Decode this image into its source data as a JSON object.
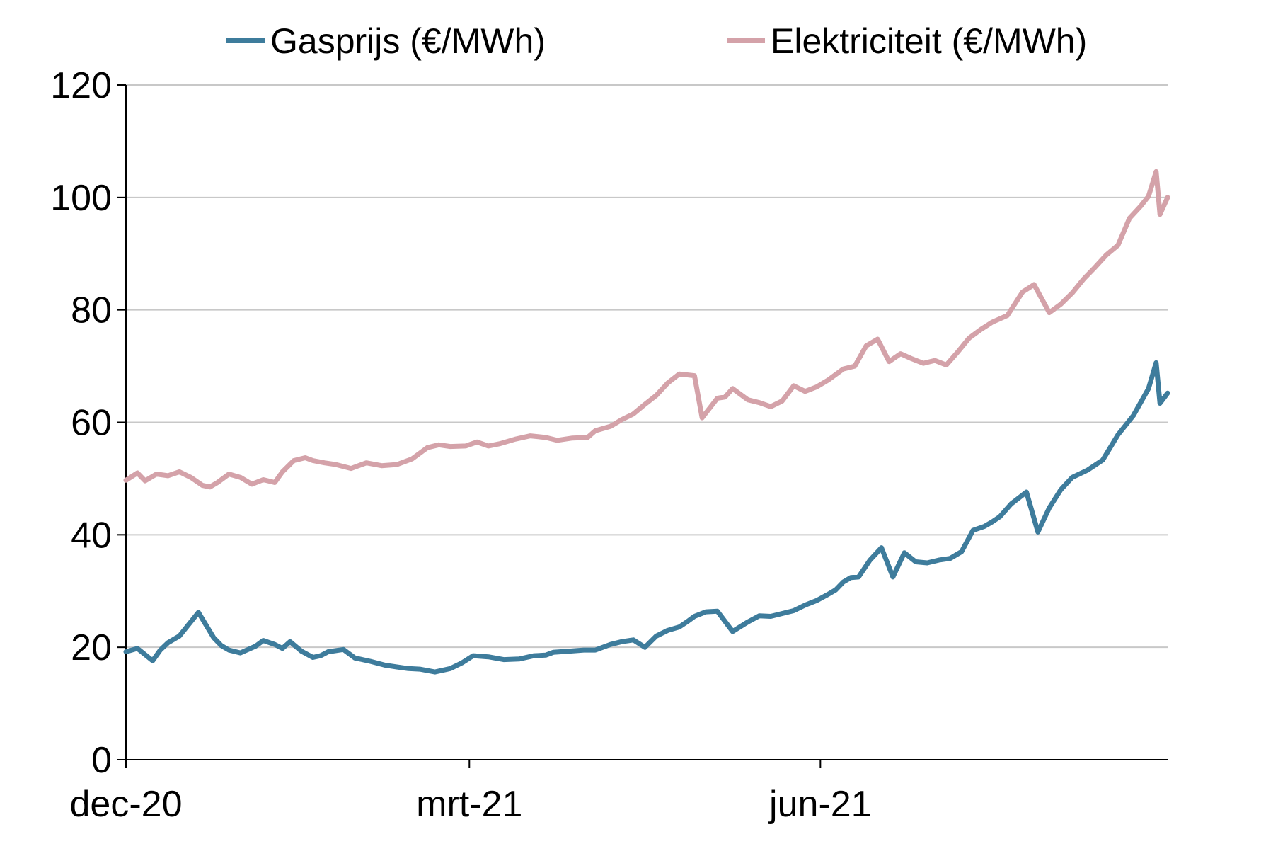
{
  "chart_data": {
    "type": "line",
    "title": "",
    "xlabel": "",
    "ylabel": "",
    "ylim": [
      0,
      120
    ],
    "y_ticks": [
      "0",
      "20",
      "40",
      "60",
      "80",
      "100",
      "120"
    ],
    "x_ticks": [
      "dec-20",
      "mrt-21",
      "jun-21"
    ],
    "x_tick_positions": [
      "2020-12-01",
      "2021-03-01",
      "2021-06-01"
    ],
    "xlim": [
      "2020-12-01",
      "2021-08-31"
    ],
    "grid": "horizontal",
    "legend_position": "top",
    "series": [
      {
        "name": "Gasprijs (€/MWh)",
        "color": "#3e7c9c",
        "x": [
          "2020-12-01",
          "2020-12-04",
          "2020-12-08",
          "2020-12-10",
          "2020-12-12",
          "2020-12-15",
          "2020-12-20",
          "2020-12-24",
          "2020-12-26",
          "2020-12-28",
          "2020-12-31",
          "2021-01-04",
          "2021-01-06",
          "2021-01-09",
          "2021-01-11",
          "2021-01-13",
          "2021-01-16",
          "2021-01-19",
          "2021-01-21",
          "2021-01-23",
          "2021-01-27",
          "2021-01-30",
          "2021-02-03",
          "2021-02-07",
          "2021-02-10",
          "2021-02-13",
          "2021-02-16",
          "2021-02-20",
          "2021-02-24",
          "2021-02-27",
          "2021-03-02",
          "2021-03-06",
          "2021-03-10",
          "2021-03-14",
          "2021-03-18",
          "2021-03-21",
          "2021-03-23",
          "2021-03-27",
          "2021-03-31",
          "2021-04-03",
          "2021-04-07",
          "2021-04-10",
          "2021-04-13",
          "2021-04-16",
          "2021-04-19",
          "2021-04-22",
          "2021-04-25",
          "2021-04-27",
          "2021-04-29",
          "2021-05-02",
          "2021-05-05",
          "2021-05-09",
          "2021-05-13",
          "2021-05-16",
          "2021-05-19",
          "2021-05-22",
          "2021-05-25",
          "2021-05-28",
          "2021-05-31",
          "2021-06-03",
          "2021-06-05",
          "2021-06-07",
          "2021-06-09",
          "2021-06-11",
          "2021-06-14",
          "2021-06-17",
          "2021-06-20",
          "2021-06-23",
          "2021-06-26",
          "2021-06-29",
          "2021-07-02",
          "2021-07-05",
          "2021-07-08",
          "2021-07-11",
          "2021-07-14",
          "2021-07-16",
          "2021-07-18",
          "2021-07-21",
          "2021-07-25",
          "2021-07-28",
          "2021-07-31",
          "2021-08-03",
          "2021-08-06",
          "2021-08-10",
          "2021-08-14",
          "2021-08-18",
          "2021-08-22",
          "2021-08-26",
          "2021-08-28",
          "2021-08-29",
          "2021-08-31"
        ],
        "values": [
          19.2,
          19.8,
          17.6,
          19.5,
          20.8,
          22.0,
          26.2,
          21.7,
          20.3,
          19.5,
          19.0,
          20.2,
          21.2,
          20.5,
          19.8,
          21.0,
          19.3,
          18.2,
          18.5,
          19.2,
          19.6,
          18.1,
          17.5,
          16.8,
          16.5,
          16.2,
          16.1,
          15.6,
          16.2,
          17.2,
          18.5,
          18.3,
          17.8,
          17.9,
          18.5,
          18.6,
          19.1,
          19.3,
          19.5,
          19.5,
          20.5,
          21.0,
          21.3,
          20.0,
          22.0,
          23.0,
          23.6,
          24.5,
          25.5,
          26.3,
          26.4,
          22.8,
          24.5,
          25.6,
          25.5,
          26.0,
          26.5,
          27.5,
          28.3,
          29.4,
          30.2,
          31.6,
          32.4,
          32.5,
          35.5,
          37.7,
          32.5,
          36.8,
          35.2,
          35.0,
          35.5,
          35.8,
          37.0,
          40.8,
          41.5,
          42.3,
          43.2,
          45.5,
          47.6,
          40.5,
          44.8,
          48.0,
          50.2,
          51.5,
          53.3,
          57.8,
          61.2,
          66.0,
          70.6,
          63.4,
          65.2
        ]
      },
      {
        "name": "Elektriciteit (€/MWh)",
        "color": "#d4a2a9",
        "x": [
          "2020-12-01",
          "2020-12-04",
          "2020-12-06",
          "2020-12-09",
          "2020-12-12",
          "2020-12-15",
          "2020-12-18",
          "2020-12-21",
          "2020-12-23",
          "2020-12-25",
          "2020-12-28",
          "2020-12-31",
          "2021-01-03",
          "2021-01-06",
          "2021-01-09",
          "2021-01-11",
          "2021-01-14",
          "2021-01-17",
          "2021-01-19",
          "2021-01-22",
          "2021-01-25",
          "2021-01-29",
          "2021-02-02",
          "2021-02-06",
          "2021-02-10",
          "2021-02-14",
          "2021-02-18",
          "2021-02-21",
          "2021-02-24",
          "2021-02-28",
          "2021-03-03",
          "2021-03-06",
          "2021-03-09",
          "2021-03-13",
          "2021-03-17",
          "2021-03-21",
          "2021-03-24",
          "2021-03-28",
          "2021-04-01",
          "2021-04-03",
          "2021-04-07",
          "2021-04-10",
          "2021-04-13",
          "2021-04-16",
          "2021-04-19",
          "2021-04-22",
          "2021-04-25",
          "2021-04-29",
          "2021-05-01",
          "2021-05-05",
          "2021-05-07",
          "2021-05-09",
          "2021-05-13",
          "2021-05-16",
          "2021-05-19",
          "2021-05-22",
          "2021-05-25",
          "2021-05-28",
          "2021-05-31",
          "2021-06-03",
          "2021-06-07",
          "2021-06-10",
          "2021-06-13",
          "2021-06-16",
          "2021-06-19",
          "2021-06-22",
          "2021-06-25",
          "2021-06-28",
          "2021-07-01",
          "2021-07-04",
          "2021-07-07",
          "2021-07-10",
          "2021-07-13",
          "2021-07-16",
          "2021-07-20",
          "2021-07-24",
          "2021-07-27",
          "2021-07-31",
          "2021-08-03",
          "2021-08-06",
          "2021-08-09",
          "2021-08-12",
          "2021-08-15",
          "2021-08-18",
          "2021-08-21",
          "2021-08-24",
          "2021-08-26",
          "2021-08-28",
          "2021-08-29",
          "2021-08-31"
        ],
        "values": [
          49.7,
          51.0,
          49.6,
          50.8,
          50.5,
          51.2,
          50.2,
          48.8,
          48.5,
          49.3,
          50.8,
          50.2,
          49.0,
          49.8,
          49.3,
          51.2,
          53.2,
          53.7,
          53.2,
          52.8,
          52.5,
          51.8,
          52.8,
          52.3,
          52.5,
          53.5,
          55.5,
          56.0,
          55.7,
          55.8,
          56.5,
          55.8,
          56.2,
          57.0,
          57.6,
          57.3,
          56.8,
          57.2,
          57.3,
          58.5,
          59.3,
          60.5,
          61.5,
          63.2,
          64.8,
          67.0,
          68.6,
          68.3,
          60.8,
          64.3,
          64.5,
          66.0,
          64.0,
          63.5,
          62.8,
          63.8,
          66.5,
          65.5,
          66.3,
          67.5,
          69.5,
          70.0,
          73.6,
          74.8,
          70.8,
          72.2,
          71.3,
          70.5,
          71.0,
          70.2,
          72.5,
          75.0,
          76.5,
          77.8,
          79.0,
          83.2,
          84.5,
          79.5,
          81.0,
          83.0,
          85.5,
          87.6,
          89.8,
          91.5,
          96.3,
          98.5,
          100.2,
          104.6,
          97.0,
          100.0
        ]
      }
    ]
  }
}
